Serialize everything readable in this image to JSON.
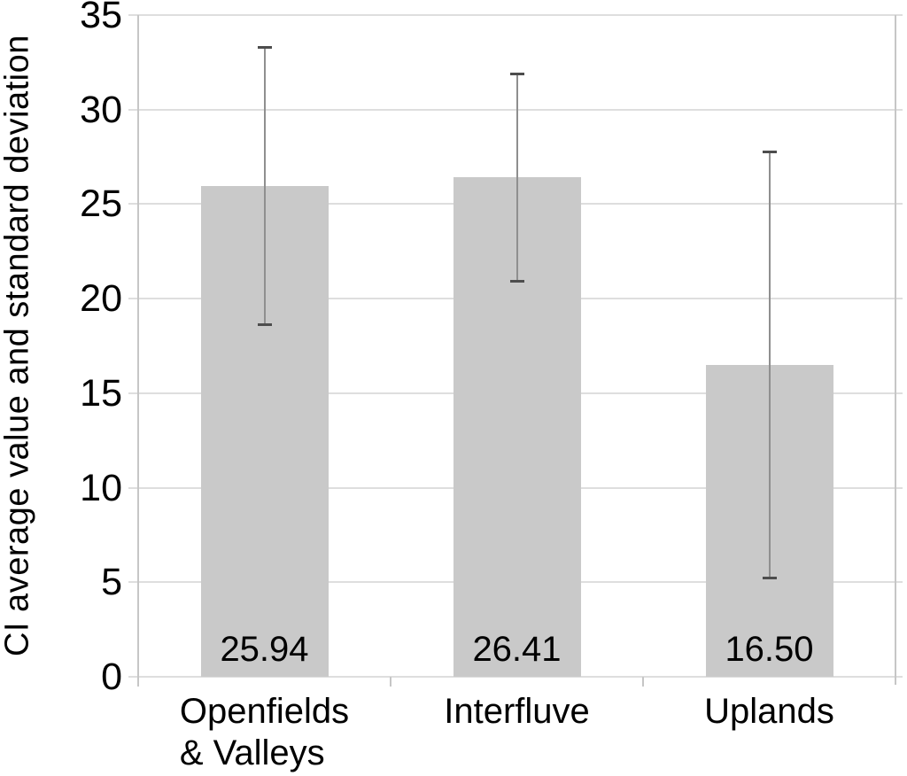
{
  "chart_data": {
    "type": "bar",
    "title": "",
    "xlabel": "",
    "ylabel": "CI average value and standard deviation",
    "categories": [
      "Openfields & Valleys",
      "Interfluve",
      "Uplands"
    ],
    "category_lines": [
      [
        "Openfields",
        "& Valleys"
      ],
      [
        "Interfluve"
      ],
      [
        "Uplands"
      ]
    ],
    "values": [
      25.94,
      26.41,
      16.5
    ],
    "data_labels": [
      "25.94",
      "26.41",
      "16.50"
    ],
    "error_sd": [
      7.36,
      5.49,
      11.31
    ],
    "error_upper": [
      33.3,
      31.9,
      27.8
    ],
    "error_lower": [
      18.6,
      20.9,
      5.2
    ],
    "ylim": [
      0,
      35
    ],
    "yticks": [
      0,
      5,
      10,
      15,
      20,
      25,
      30,
      35
    ],
    "grid": true,
    "legend": false,
    "colors": {
      "bar_fill": "#c9c9c9",
      "gridline": "#dedede",
      "axis": "#c6c6c6",
      "error_line": "#8f8f8f",
      "error_cap": "#4d4d4d",
      "text": "#000000",
      "background": "#ffffff"
    }
  }
}
